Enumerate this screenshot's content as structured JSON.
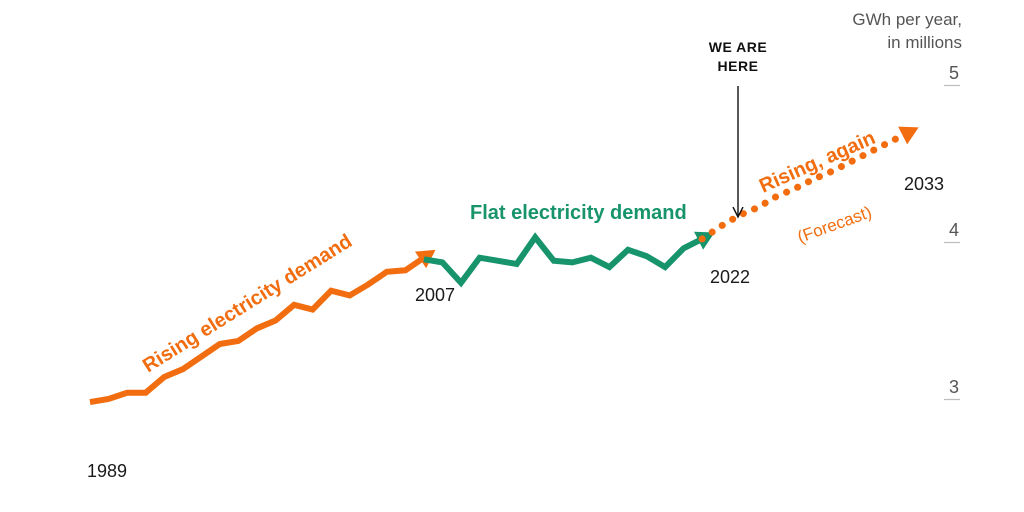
{
  "chart_data": {
    "type": "line",
    "title": "",
    "ylabel_line1": "GWh per year,",
    "ylabel_line2": "in millions",
    "ylim": [
      2.75,
      5.2
    ],
    "yticks": [
      {
        "value": 5,
        "label": "5"
      },
      {
        "value": 4,
        "label": "4"
      },
      {
        "value": 3,
        "label": "3"
      }
    ],
    "colors": {
      "rising": "#f26d0f",
      "flat": "#17946b"
    },
    "series": [
      {
        "name": "Rising electricity demand",
        "color": "#f26d0f",
        "style": "solid",
        "x": [
          1989,
          1990,
          1991,
          1992,
          1993,
          1994,
          1995,
          1996,
          1997,
          1998,
          1999,
          2000,
          2001,
          2002,
          2003,
          2004,
          2005,
          2006,
          2007
        ],
        "values": [
          2.98,
          3.0,
          3.04,
          3.04,
          3.14,
          3.19,
          3.27,
          3.35,
          3.37,
          3.45,
          3.5,
          3.6,
          3.57,
          3.69,
          3.66,
          3.73,
          3.81,
          3.82,
          3.9
        ]
      },
      {
        "name": "Flat electricity demand",
        "color": "#17946b",
        "style": "solid",
        "x": [
          2007,
          2008,
          2009,
          2010,
          2011,
          2012,
          2013,
          2014,
          2015,
          2016,
          2017,
          2018,
          2019,
          2020,
          2021,
          2022
        ],
        "values": [
          3.89,
          3.87,
          3.74,
          3.9,
          3.88,
          3.86,
          4.03,
          3.88,
          3.87,
          3.9,
          3.84,
          3.95,
          3.91,
          3.84,
          3.96,
          4.02
        ]
      },
      {
        "name": "Forecast",
        "color": "#f26d0f",
        "style": "dotted",
        "x": [
          2022,
          2023,
          2024,
          2025,
          2026,
          2027,
          2028,
          2029,
          2030,
          2031,
          2032,
          2033
        ],
        "values": [
          4.02,
          4.1,
          4.17,
          4.22,
          4.29,
          4.34,
          4.4,
          4.45,
          4.51,
          4.57,
          4.63,
          4.69
        ]
      }
    ],
    "year_labels": [
      "1989",
      "2007",
      "2022",
      "2033"
    ],
    "annotations": {
      "rising": "Rising electricity demand",
      "flat": "Flat electricity demand",
      "rising_again": "Rising, again",
      "forecast": "(Forecast)",
      "we_are_here_line1": "WE ARE",
      "we_are_here_line2": "HERE"
    }
  }
}
